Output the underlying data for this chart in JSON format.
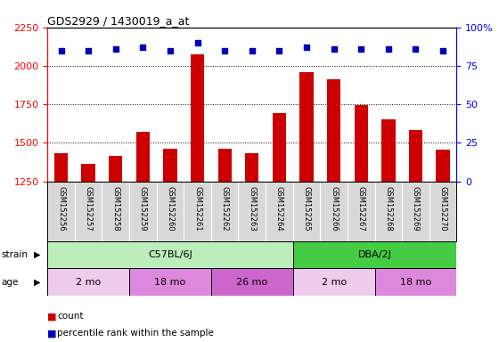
{
  "title": "GDS2929 / 1430019_a_at",
  "samples": [
    "GSM152256",
    "GSM152257",
    "GSM152258",
    "GSM152259",
    "GSM152260",
    "GSM152261",
    "GSM152262",
    "GSM152263",
    "GSM152264",
    "GSM152265",
    "GSM152266",
    "GSM152267",
    "GSM152268",
    "GSM152269",
    "GSM152270"
  ],
  "counts": [
    1430,
    1365,
    1415,
    1570,
    1460,
    2075,
    1460,
    1430,
    1695,
    1960,
    1910,
    1745,
    1650,
    1580,
    1455
  ],
  "percentile_ranks": [
    85,
    85,
    86,
    87,
    85,
    90,
    85,
    85,
    85,
    87,
    86,
    86,
    86,
    86,
    85
  ],
  "ylim_left": [
    1250,
    2250
  ],
  "ylim_right": [
    0,
    100
  ],
  "yticks_left": [
    1250,
    1500,
    1750,
    2000,
    2250
  ],
  "yticks_right": [
    0,
    25,
    50,
    75,
    100
  ],
  "bar_color": "#cc0000",
  "dot_color": "#0000bb",
  "strain_groups": [
    {
      "label": "C57BL/6J",
      "start": 0,
      "end": 9,
      "color": "#bbeebb"
    },
    {
      "label": "DBA/2J",
      "start": 9,
      "end": 15,
      "color": "#44cc44"
    }
  ],
  "age_groups": [
    {
      "label": "2 mo",
      "start": 0,
      "end": 3,
      "color": "#eeccee"
    },
    {
      "label": "18 mo",
      "start": 3,
      "end": 6,
      "color": "#dd88dd"
    },
    {
      "label": "26 mo",
      "start": 6,
      "end": 9,
      "color": "#cc66cc"
    },
    {
      "label": "2 mo",
      "start": 9,
      "end": 12,
      "color": "#eeccee"
    },
    {
      "label": "18 mo",
      "start": 12,
      "end": 15,
      "color": "#dd88dd"
    }
  ],
  "legend_items": [
    {
      "color": "#cc0000",
      "label": "count"
    },
    {
      "color": "#0000bb",
      "label": "percentile rank within the sample"
    }
  ],
  "plot_bg_color": "#ffffff",
  "label_bg_color": "#d8d8d8"
}
